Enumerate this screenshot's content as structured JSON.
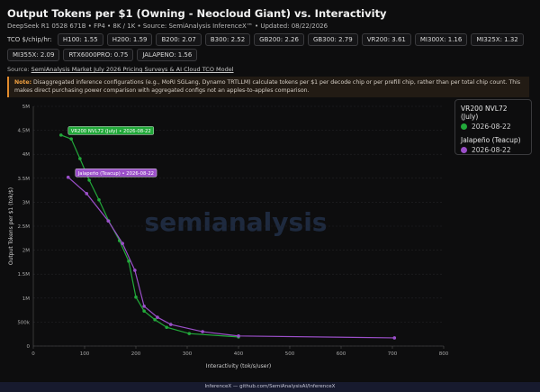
{
  "header": {
    "title": "Output Tokens per $1 (Owning - Neocloud Giant) vs. Interactivity",
    "subtitle": "DeepSeek R1 0528 671B • FP4 • 8K / 1K • Source: SemiAnalysis InferenceX™ • Updated: 08/22/2026",
    "tco_label": "TCO $/chip/hr:",
    "tco_chips": [
      "H100: 1.55",
      "H200: 1.59",
      "B200: 2.07",
      "B300: 2.52",
      "GB200: 2.26",
      "GB300: 2.79",
      "VR200: 3.61",
      "MI300X: 1.16",
      "MI325X: 1.32",
      "MI355X: 2.09",
      "RTX6000PRO: 0.75",
      "JALAPENO: 1.56"
    ],
    "source_prefix": "Source:",
    "source_link": "SemiAnalysis Market July 2026 Pricing Surveys & AI Cloud TCO Model",
    "note_label": "Note:",
    "note": "Disaggregated inference configurations (e.g., MoRI SGLang, Dynamo TRTLLM) calculate tokens per $1 per decode chip or per prefill chip, rather than per total chip count. This makes direct purchasing power comparison with aggregated configs not an apples-to-apples comparison."
  },
  "chart_data": {
    "type": "line",
    "x_label": "Interactivity (tok/s/user)",
    "y_label": "Output Tokens per $1 (tok/$)",
    "xlim": [
      0,
      800
    ],
    "xticks": [
      0,
      100,
      200,
      300,
      400,
      500,
      600,
      700,
      800
    ],
    "ylim": [
      0,
      5000000
    ],
    "yticks": [
      0,
      {
        "value": 500000,
        "label": "500k"
      },
      {
        "value": 1000000,
        "label": "1M"
      },
      {
        "value": 1500000,
        "label": "1.5M"
      },
      {
        "value": 2000000,
        "label": "2M"
      },
      {
        "value": 2500000,
        "label": "2.5M"
      },
      {
        "value": 3000000,
        "label": "3M"
      },
      {
        "value": 3500000,
        "label": "3.5M"
      },
      {
        "value": 4000000,
        "label": "4M"
      },
      {
        "value": 4500000,
        "label": "4.5M"
      },
      {
        "value": 5000000,
        "label": "5M"
      }
    ],
    "grid": true,
    "legend": "right",
    "watermark": "semianalysis",
    "series": [
      {
        "name": "VR200 NVL72 (July)",
        "date": "2026-08-22",
        "color": "#22a93a",
        "annotation": "VR200 NVL72 (July) • 2026-08-22",
        "x": [
          54,
          74,
          91,
          109,
          128,
          147,
          168,
          186,
          200,
          216,
          237,
          260,
          304,
          400
        ],
        "values": [
          4400000,
          4320000,
          3910000,
          3460000,
          3050000,
          2610000,
          2200000,
          1770000,
          1020000,
          730000,
          550000,
          390000,
          260000,
          190000
        ]
      },
      {
        "name": "Jalapeño (Teacup)",
        "date": "2026-08-22",
        "color": "#9b4fc9",
        "annotation": "Jalapeño (Teacup) • 2026-08-22",
        "x": [
          68,
          104,
          146,
          174,
          198,
          216,
          242,
          268,
          330,
          400,
          704
        ],
        "values": [
          3520000,
          3180000,
          2610000,
          2140000,
          1580000,
          830000,
          600000,
          450000,
          300000,
          210000,
          170000
        ]
      }
    ]
  },
  "footer": "InferenceX — github.com/SemiAnalysisAI/InferenceX"
}
